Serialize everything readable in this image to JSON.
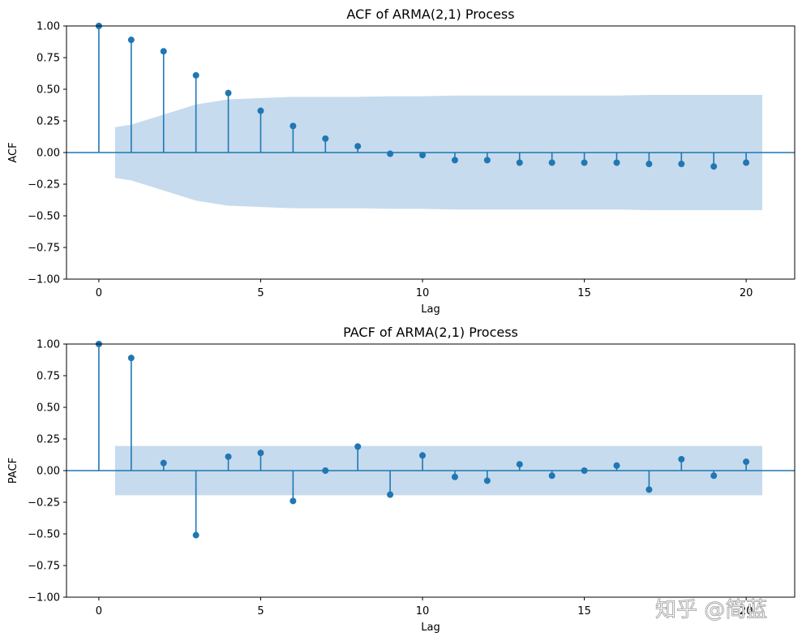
{
  "chart_data": [
    {
      "type": "stem",
      "title": "ACF of ARMA(2,1) Process",
      "xlabel": "Lag",
      "ylabel": "ACF",
      "xlim": [
        -1,
        21.5
      ],
      "ylim": [
        -1.0,
        1.0
      ],
      "xticks": [
        "0",
        "5",
        "10",
        "15",
        "20"
      ],
      "xtick_values": [
        0,
        5,
        10,
        15,
        20
      ],
      "yticks": [
        "1.00",
        "0.75",
        "0.50",
        "0.25",
        "0.00",
        "−0.25",
        "−0.50",
        "−0.75",
        "−1.00"
      ],
      "ytick_values": [
        1.0,
        0.75,
        0.5,
        0.25,
        0.0,
        -0.25,
        -0.5,
        -0.75,
        -1.0
      ],
      "lags": [
        0,
        1,
        2,
        3,
        4,
        5,
        6,
        7,
        8,
        9,
        10,
        11,
        12,
        13,
        14,
        15,
        16,
        17,
        18,
        19,
        20
      ],
      "values": [
        1.0,
        0.89,
        0.8,
        0.61,
        0.47,
        0.33,
        0.21,
        0.11,
        0.05,
        -0.01,
        -0.02,
        -0.06,
        -0.06,
        -0.08,
        -0.08,
        -0.08,
        -0.08,
        -0.09,
        -0.09,
        -0.11,
        -0.08
      ],
      "confidence_band": {
        "lags": [
          0.5,
          1,
          2,
          3,
          4,
          5,
          6,
          7,
          8,
          9,
          10,
          11,
          12,
          13,
          14,
          15,
          16,
          17,
          18,
          19,
          20,
          20.5
        ],
        "upper": [
          0.2,
          0.22,
          0.3,
          0.38,
          0.42,
          0.43,
          0.44,
          0.44,
          0.44,
          0.445,
          0.445,
          0.45,
          0.45,
          0.45,
          0.45,
          0.45,
          0.45,
          0.455,
          0.455,
          0.455,
          0.455,
          0.455
        ]
      }
    },
    {
      "type": "stem",
      "title": "PACF of ARMA(2,1) Process",
      "xlabel": "Lag",
      "ylabel": "PACF",
      "xlim": [
        -1,
        21.5
      ],
      "ylim": [
        -1.0,
        1.0
      ],
      "xticks": [
        "0",
        "5",
        "10",
        "15",
        "20"
      ],
      "xtick_values": [
        0,
        5,
        10,
        15,
        20
      ],
      "yticks": [
        "1.00",
        "0.75",
        "0.50",
        "0.25",
        "0.00",
        "−0.25",
        "−0.50",
        "−0.75",
        "−1.00"
      ],
      "ytick_values": [
        1.0,
        0.75,
        0.5,
        0.25,
        0.0,
        -0.25,
        -0.5,
        -0.75,
        -1.0
      ],
      "lags": [
        0,
        1,
        2,
        3,
        4,
        5,
        6,
        7,
        8,
        9,
        10,
        11,
        12,
        13,
        14,
        15,
        16,
        17,
        18,
        19,
        20
      ],
      "values": [
        1.0,
        0.89,
        0.06,
        -0.51,
        0.11,
        0.14,
        -0.24,
        0.0,
        0.19,
        -0.19,
        0.12,
        -0.05,
        -0.08,
        0.05,
        -0.04,
        0.0,
        0.04,
        -0.15,
        0.09,
        -0.04,
        0.07
      ],
      "confidence_band": {
        "lags": [
          0.5,
          20.5
        ],
        "upper": [
          0.195,
          0.195
        ]
      }
    }
  ],
  "colors": {
    "stem": "#1f77b4",
    "band": "#c6dbed",
    "axis": "#000000"
  },
  "watermark": "知乎 @简蓝"
}
